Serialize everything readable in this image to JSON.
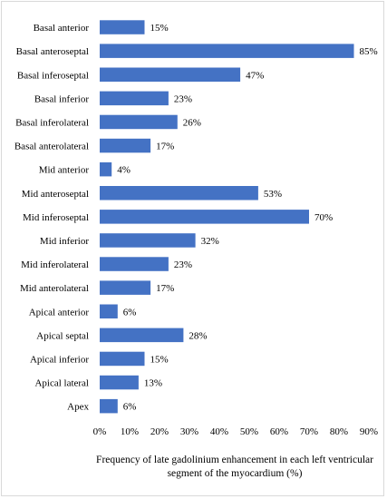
{
  "chart_data": {
    "type": "bar",
    "orientation": "horizontal",
    "categories": [
      "Basal anterior",
      "Basal anteroseptal",
      "Basal inferoseptal",
      "Basal inferior",
      "Basal inferolateral",
      "Basal anterolateral",
      "Mid anterior",
      "Mid anteroseptal",
      "Mid inferoseptal",
      "Mid inferior",
      "Mid inferolateral",
      "Mid anterolateral",
      "Apical anterior",
      "Apical septal",
      "Apical inferior",
      "Apical lateral",
      "Apex"
    ],
    "values": [
      15,
      85,
      47,
      23,
      26,
      17,
      4,
      53,
      70,
      32,
      23,
      17,
      6,
      28,
      15,
      13,
      6
    ],
    "value_labels": [
      "15%",
      "85%",
      "47%",
      "23%",
      "26%",
      "17%",
      "4%",
      "53%",
      "70%",
      "32%",
      "23%",
      "17%",
      "6%",
      "28%",
      "15%",
      "13%",
      "6%"
    ],
    "xlim": [
      0,
      90
    ],
    "xticks": [
      "0%",
      "10%",
      "20%",
      "30%",
      "40%",
      "50%",
      "60%",
      "70%",
      "80%",
      "90%"
    ],
    "xlabel_lines": [
      "Frequency of late gadolinium enhancement in each left ventricular",
      "segment of the myocardium (%)"
    ],
    "grid": false,
    "bar_color": "#4472c4"
  }
}
